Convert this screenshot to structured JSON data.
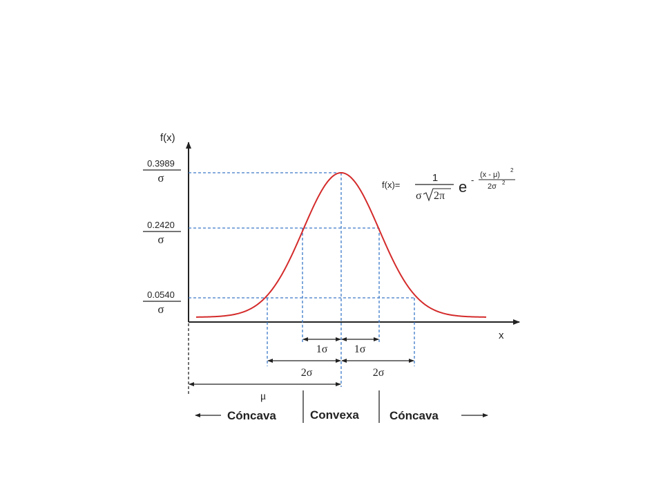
{
  "axis_labels": {
    "y": "f(x)",
    "x": "x"
  },
  "y_tick_labels": [
    {
      "numerator": "0.3989",
      "denominator": "σ"
    },
    {
      "numerator": "0.2420",
      "denominator": "σ"
    },
    {
      "numerator": "0.0540",
      "denominator": "σ"
    }
  ],
  "formula": {
    "lhs": "f(x)=",
    "numerator": "1",
    "den_sigma": "σ",
    "den_root": "2π",
    "base": "e",
    "exp_sign": "-",
    "exp_numerator": "(x - μ)",
    "exp_num_power": "2",
    "exp_denominator": "2σ",
    "exp_den_power": "2"
  },
  "intervals": {
    "one_sigma_left": "1σ",
    "one_sigma_right": "1σ",
    "two_sigma_left": "2σ",
    "two_sigma_right": "2σ",
    "mu": "μ"
  },
  "regions": {
    "left": "Cóncava",
    "middle": "Convexa",
    "right": "Cóncava"
  },
  "colors": {
    "curve": "#d42a2a",
    "guides": "#3a78c8",
    "axes": "#222222"
  }
}
